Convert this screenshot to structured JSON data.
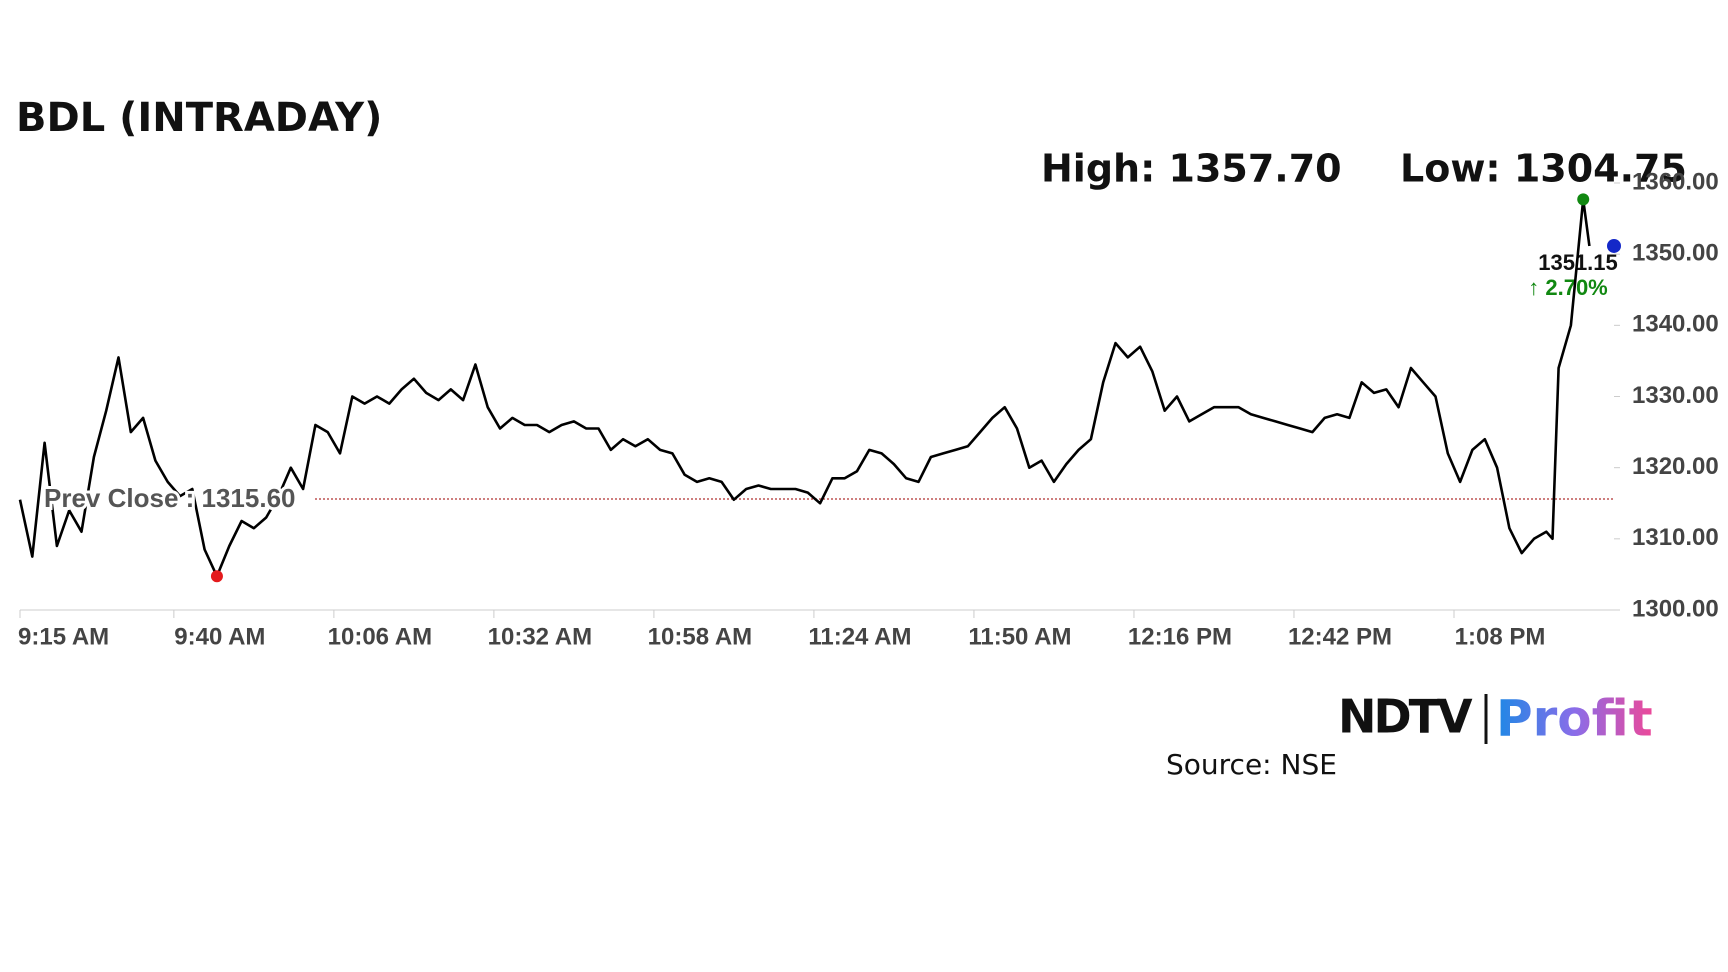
{
  "chart_data": {
    "type": "line",
    "title": "BDL (INTRADAY)",
    "color": "#000000",
    "x": [
      "9:15 AM",
      "9:17 AM",
      "9:19 AM",
      "9:21 AM",
      "9:23 AM",
      "9:25 AM",
      "9:27 AM",
      "9:29 AM",
      "9:31 AM",
      "9:33 AM",
      "9:35 AM",
      "9:37 AM",
      "9:39 AM",
      "9:41 AM",
      "9:43 AM",
      "9:45 AM",
      "9:47 AM",
      "9:49 AM",
      "9:51 AM",
      "9:53 AM",
      "9:55 AM",
      "9:57 AM",
      "9:59 AM",
      "10:01 AM",
      "10:03 AM",
      "10:05 AM",
      "10:07 AM",
      "10:09 AM",
      "10:11 AM",
      "10:13 AM",
      "10:15 AM",
      "10:17 AM",
      "10:19 AM",
      "10:21 AM",
      "10:23 AM",
      "10:25 AM",
      "10:27 AM",
      "10:29 AM",
      "10:31 AM",
      "10:33 AM",
      "10:35 AM",
      "10:37 AM",
      "10:39 AM",
      "10:41 AM",
      "10:43 AM",
      "10:45 AM",
      "10:47 AM",
      "10:49 AM",
      "10:51 AM",
      "10:53 AM",
      "10:55 AM",
      "10:57 AM",
      "10:59 AM",
      "11:01 AM",
      "11:03 AM",
      "11:05 AM",
      "11:07 AM",
      "11:09 AM",
      "11:11 AM",
      "11:13 AM",
      "11:15 AM",
      "11:17 AM",
      "11:19 AM",
      "11:21 AM",
      "11:23 AM",
      "11:25 AM",
      "11:27 AM",
      "11:29 AM",
      "11:31 AM",
      "11:33 AM",
      "11:35 AM",
      "11:37 AM",
      "11:39 AM",
      "11:41 AM",
      "11:43 AM",
      "11:45 AM",
      "11:47 AM",
      "11:49 AM",
      "11:51 AM",
      "11:53 AM",
      "11:55 AM",
      "11:57 AM",
      "11:59 AM",
      "12:01 PM",
      "12:03 PM",
      "12:05 PM",
      "12:07 PM",
      "12:09 PM",
      "12:11 PM",
      "12:13 PM",
      "12:15 PM",
      "12:17 PM",
      "12:19 PM",
      "12:21 PM",
      "12:23 PM",
      "12:25 PM",
      "12:27 PM",
      "12:29 PM",
      "12:31 PM",
      "12:33 PM",
      "12:35 PM",
      "12:37 PM",
      "12:39 PM",
      "12:41 PM",
      "12:43 PM",
      "12:45 PM",
      "12:47 PM",
      "12:49 PM",
      "12:51 PM",
      "12:53 PM",
      "12:55 PM",
      "12:57 PM",
      "12:59 PM",
      "1:01 PM",
      "1:03 PM",
      "1:05 PM",
      "1:07 PM",
      "1:09 PM",
      "1:11 PM",
      "1:13 PM",
      "1:15 PM",
      "1:17 PM",
      "1:19 PM",
      "1:21 PM",
      "1:23 PM",
      "1:24 PM",
      "1:25 PM",
      "1:27 PM",
      "1:29 PM",
      "1:30 PM"
    ],
    "values": [
      1315.5,
      1307.5,
      1323.5,
      1309,
      1314,
      1311,
      1321.5,
      1328,
      1335.5,
      1325,
      1327,
      1321,
      1318,
      1316,
      1317,
      1308.5,
      1304.75,
      1309,
      1312.5,
      1311.5,
      1313,
      1316,
      1320,
      1317,
      1326,
      1325,
      1322,
      1330,
      1329,
      1330,
      1329,
      1331,
      1332.5,
      1330.5,
      1329.5,
      1331,
      1329.5,
      1334.5,
      1328.5,
      1325.5,
      1327,
      1326,
      1326,
      1325,
      1326,
      1326.5,
      1325.5,
      1325.5,
      1322.5,
      1324,
      1323,
      1324,
      1322.5,
      1322,
      1319,
      1318,
      1318.5,
      1318,
      1315.5,
      1317,
      1317.5,
      1317,
      1317,
      1317,
      1316.5,
      1315,
      1318.5,
      1318.5,
      1319.5,
      1322.5,
      1322,
      1320.5,
      1318.5,
      1318,
      1321.5,
      1322,
      1322.5,
      1323,
      1325,
      1327,
      1328.5,
      1325.5,
      1320,
      1321,
      1318,
      1320.5,
      1322.5,
      1324,
      1332,
      1337.5,
      1335.5,
      1337,
      1333.5,
      1328,
      1330,
      1326.5,
      1327.5,
      1328.5,
      1328.5,
      1328.5,
      1327.5,
      1327,
      1326.5,
      1326,
      1325.5,
      1325,
      1327,
      1327.5,
      1327,
      1332,
      1330.5,
      1331,
      1328.5,
      1334,
      1332,
      1330,
      1322,
      1318,
      1322.5,
      1324,
      1320,
      1311.5,
      1308,
      1310,
      1311,
      1310,
      1334,
      1340,
      1357.7,
      1351.15
    ],
    "xlim": [
      "9:15 AM",
      "1:34 PM"
    ],
    "xticks": [
      "9:15 AM",
      "9:40 AM",
      "10:06 AM",
      "10:32 AM",
      "10:58 AM",
      "11:24 AM",
      "11:50 AM",
      "12:16 PM",
      "12:42 PM",
      "1:08 PM"
    ],
    "ylim": [
      1300,
      1360
    ],
    "yticks": [
      {
        "value": 1300,
        "label": "1300.00"
      },
      {
        "value": 1310,
        "label": "1310.00"
      },
      {
        "value": 1320,
        "label": "1320.00"
      },
      {
        "value": 1330,
        "label": "1330.00"
      },
      {
        "value": 1340,
        "label": "1340.00"
      },
      {
        "value": 1350,
        "label": "1350.00"
      },
      {
        "value": 1360,
        "label": "1360.00"
      }
    ],
    "high": {
      "text": "High: 1357.70",
      "value": 1357.7,
      "color": "#118811"
    },
    "low": {
      "text": "Low: 1304.75",
      "value": 1304.75,
      "color": "#e41a1c"
    },
    "prev_close": {
      "text": "Prev Close : 1315.60",
      "value": 1315.6,
      "color": "#b03030"
    },
    "last": {
      "text": "1351.15",
      "value": 1351.15,
      "color": "#1428c8"
    },
    "change": "↑ 2.70%",
    "source": "Source: NSE",
    "logo": {
      "left": "NDTV",
      "right": "Profit"
    }
  }
}
